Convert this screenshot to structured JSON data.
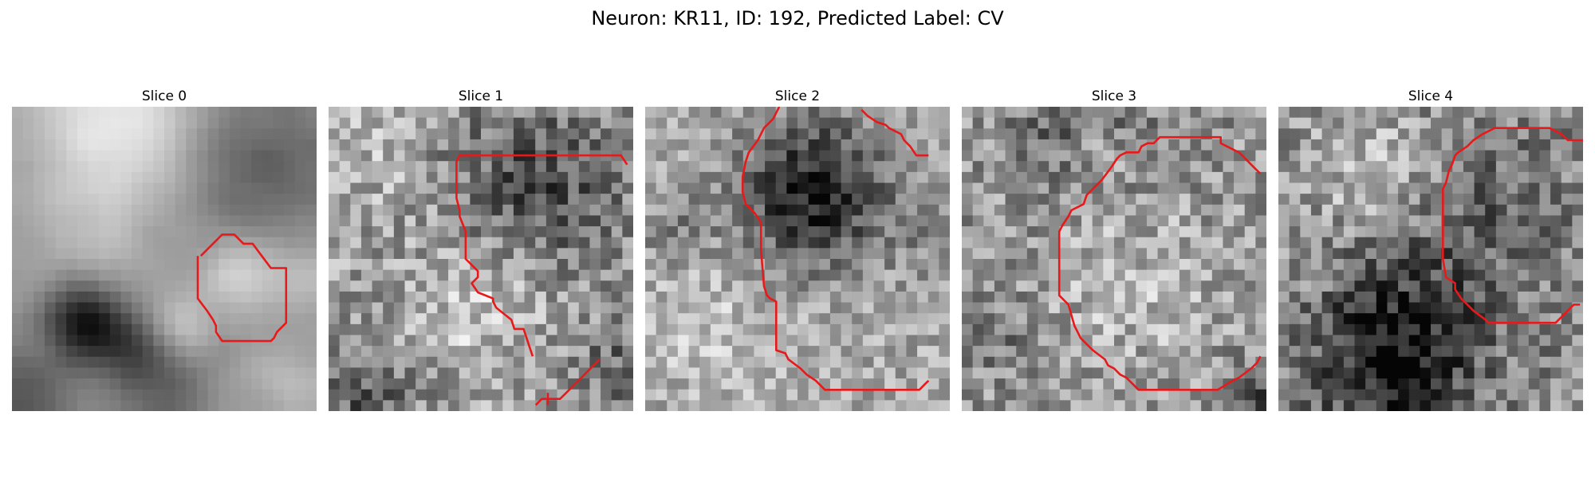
{
  "figure": {
    "title": "Neuron: KR11, ID: 192, Predicted Label: CV"
  },
  "panels": [
    {
      "title": "Slice 0"
    },
    {
      "title": "Slice 1"
    },
    {
      "title": "Slice 2"
    },
    {
      "title": "Slice 3"
    },
    {
      "title": "Slice 4"
    }
  ],
  "colors": {
    "contour": "#e8191a",
    "background": "#ffffff"
  }
}
